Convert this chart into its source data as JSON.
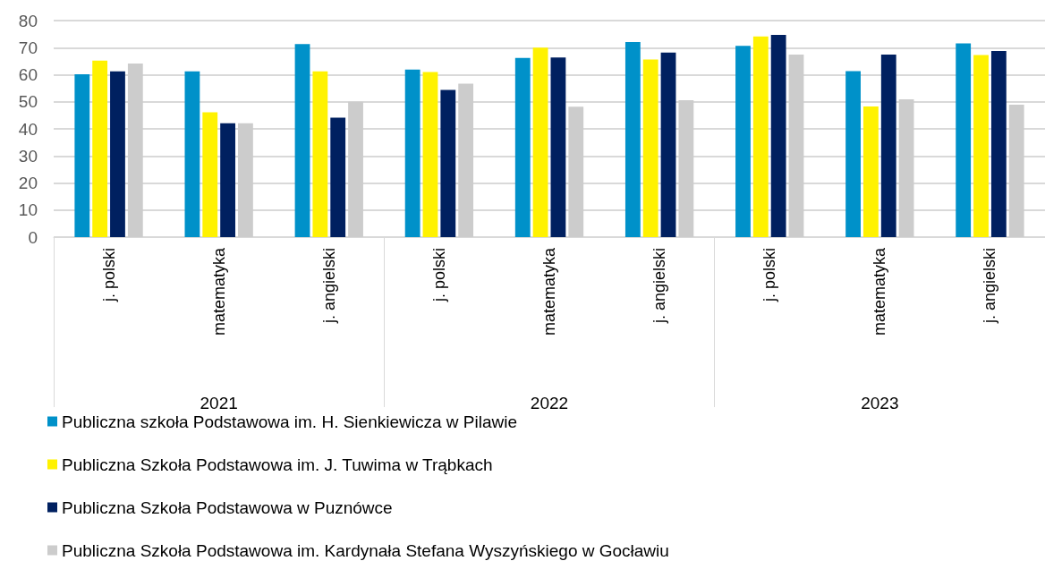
{
  "chart_data": {
    "type": "bar",
    "categories": [
      "j. polski",
      "matematyka",
      "j. angielski",
      "j. polski",
      "matematyka",
      "j. angielski",
      "j. polski",
      "matematyka",
      "j. angielski"
    ],
    "annotations": [
      "2021",
      "2022",
      "2023"
    ],
    "series": [
      {
        "name": "Publiczna szkoła Podstawowa im. H. Sienkiewicza w Pilawie",
        "color": "#0091c9",
        "values": [
          60.2,
          61.2,
          71.3,
          61.9,
          66.2,
          72.1,
          70.7,
          61.3,
          71.6
        ]
      },
      {
        "name": "Publiczna Szkoła Podstawowa im. J. Tuwima w Trąbkach",
        "color": "#fff200",
        "values": [
          65.2,
          46.1,
          61.2,
          61,
          70,
          65.6,
          74.1,
          48.3,
          67.3
        ]
      },
      {
        "name": "Publiczna Szkoła Podstawowa w Puznówce",
        "color": "#002060",
        "values": [
          61.2,
          42.1,
          44.1,
          54.4,
          66.4,
          68.2,
          74.7,
          67.4,
          68.8
        ]
      },
      {
        "name": "Publiczna Szkoła Podstawowa im. Kardynała Stefana Wyszyńskiego w Gocławiu",
        "color": "#cccccc",
        "values": [
          64.1,
          42.1,
          50,
          56.7,
          48.2,
          50.6,
          67.4,
          50.9,
          48.9
        ]
      }
    ],
    "ylim": [
      0,
      80
    ],
    "yticks": [
      0,
      10,
      20,
      30,
      40,
      50,
      60,
      70,
      80
    ],
    "grid": "y",
    "legend": "bottom left"
  }
}
